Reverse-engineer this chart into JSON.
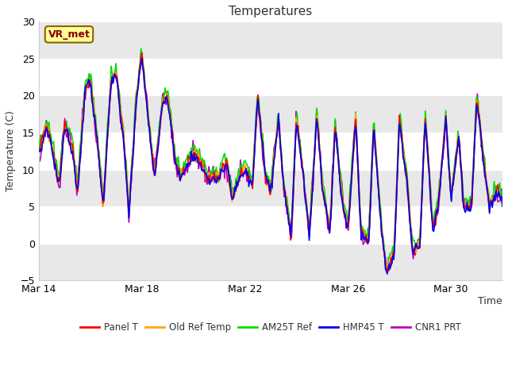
{
  "title": "Temperatures",
  "xlabel": "Time",
  "ylabel": "Temperature (C)",
  "ylim": [
    -5,
    30
  ],
  "yticks": [
    -5,
    0,
    5,
    10,
    15,
    20,
    25,
    30
  ],
  "fig_bg": "#ffffff",
  "plot_bg": "#ffffff",
  "band_color": "#e8e8e8",
  "series_colors": {
    "Panel T": "#ff0000",
    "Old Ref Temp": "#ffa500",
    "AM25T Ref": "#00dd00",
    "HMP45 T": "#0000ee",
    "CNR1 PRT": "#bb00bb"
  },
  "legend_labels": [
    "Panel T",
    "Old Ref Temp",
    "AM25T Ref",
    "HMP45 T",
    "CNR1 PRT"
  ],
  "annotation_text": "VR_met",
  "x_tick_labels": [
    "Mar 14",
    "Mar 18",
    "Mar 22",
    "Mar 26",
    "Mar 30"
  ],
  "x_tick_positions": [
    0,
    4,
    8,
    12,
    16
  ],
  "num_points": 500
}
